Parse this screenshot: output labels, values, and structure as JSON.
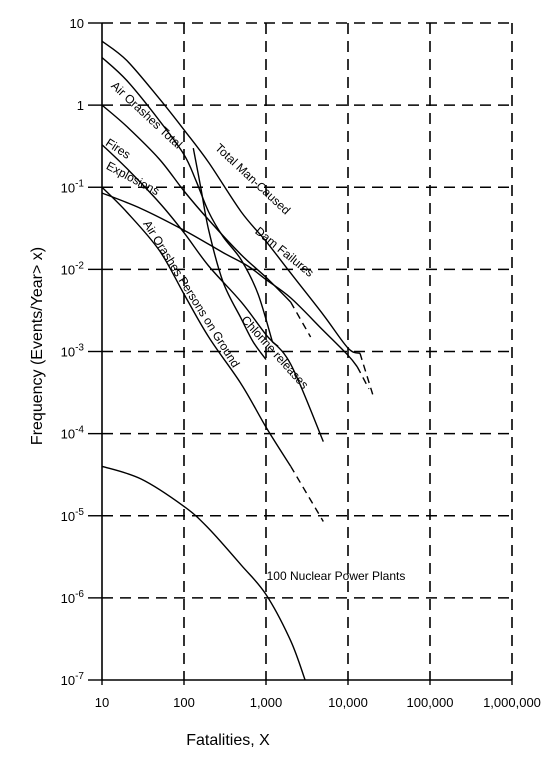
{
  "chart_data": {
    "type": "line",
    "title": "",
    "xlabel": "Fatalities, X",
    "ylabel": "Frequency (Events/Year> x)",
    "x_scale": "log",
    "y_scale": "log",
    "xlim": [
      10,
      1000000
    ],
    "ylim": [
      1e-07,
      10
    ],
    "grid": true,
    "grid_style": "dashed",
    "x_ticks": [
      "10",
      "100",
      "1,000",
      "10,000",
      "100,000",
      "1,000,000"
    ],
    "y_ticks": [
      {
        "base": "10",
        "exp": "-7"
      },
      {
        "base": "10",
        "exp": "-6"
      },
      {
        "base": "10",
        "exp": "-5"
      },
      {
        "base": "10",
        "exp": "-4"
      },
      {
        "base": "10",
        "exp": "-3"
      },
      {
        "base": "10",
        "exp": "-2"
      },
      {
        "base": "10",
        "exp": "-1"
      },
      {
        "base": "1",
        "exp": ""
      },
      {
        "base": "10",
        "exp": ""
      }
    ],
    "series": [
      {
        "name": "Total Man-Caused",
        "x": [
          10,
          20,
          50,
          100,
          200,
          500,
          1000,
          2000,
          5000,
          10000,
          14000
        ],
        "y": [
          6,
          3.5,
          1.2,
          0.5,
          0.2,
          0.05,
          0.022,
          0.009,
          0.0028,
          0.0011,
          0.00095
        ],
        "dashed_x": [
          14000,
          20000
        ],
        "dashed_y": [
          0.00095,
          0.0003
        ]
      },
      {
        "name": "Air Crashes Total",
        "x": [
          10,
          20,
          50,
          100,
          140,
          200,
          300,
          500,
          800,
          1200
        ],
        "y": [
          3.8,
          2,
          0.65,
          0.25,
          0.12,
          0.05,
          0.025,
          0.013,
          0.005,
          0.0013
        ],
        "dashed_x": [
          1200,
          1500
        ],
        "dashed_y": [
          0.0013,
          0.0011
        ]
      },
      {
        "name": "Dam Failures",
        "x": [
          10,
          30,
          100,
          300,
          600,
          1000,
          2000,
          5000,
          10000,
          13000
        ],
        "y": [
          0.085,
          0.055,
          0.03,
          0.016,
          0.011,
          0.0075,
          0.0045,
          0.0018,
          0.0009,
          0.00065
        ],
        "dashed_x": [
          13000,
          18000
        ],
        "dashed_y": [
          0.00065,
          0.00035
        ]
      },
      {
        "name": "Fires",
        "x": [
          10,
          20,
          50,
          100,
          200,
          500,
          1000,
          2000
        ],
        "y": [
          1.0,
          0.55,
          0.22,
          0.09,
          0.04,
          0.015,
          0.008,
          0.004
        ],
        "dashed_x": [
          2000,
          3500
        ],
        "dashed_y": [
          0.004,
          0.0015
        ]
      },
      {
        "name": "Explosions",
        "x": [
          10,
          20,
          50,
          100,
          200,
          500,
          1000,
          2000,
          5000
        ],
        "y": [
          0.33,
          0.17,
          0.065,
          0.028,
          0.011,
          0.004,
          0.0016,
          0.0007,
          8e-05
        ]
      },
      {
        "name": "Air Crashes Persons on Ground",
        "x": [
          10,
          20,
          50,
          100,
          200,
          500,
          1000,
          2000
        ],
        "y": [
          0.1,
          0.05,
          0.017,
          0.005,
          0.0015,
          0.0004,
          0.00012,
          4e-05
        ],
        "dashed_x": [
          2000,
          5000
        ],
        "dashed_y": [
          4e-05,
          8.5e-06
        ]
      },
      {
        "name": "Chlorine releases",
        "x": [
          130,
          160,
          200,
          300,
          500,
          700,
          1000
        ],
        "y": [
          0.3,
          0.1,
          0.03,
          0.007,
          0.0025,
          0.0013,
          0.0008
        ]
      },
      {
        "name": "100 Nuclear Power Plants",
        "x": [
          10,
          30,
          100,
          200,
          500,
          1000,
          2000,
          3000
        ],
        "y": [
          4e-05,
          2.8e-05,
          1.3e-05,
          7e-06,
          2.5e-06,
          1.1e-06,
          3e-07,
          1e-07
        ]
      }
    ],
    "curve_labels": [
      "Total Man-Caused",
      "Air Orashes Total",
      "Fires",
      "Explosions",
      "Air Orashes Persons on Ground",
      "Chlonne releases",
      "Dam Failures",
      "100 Nuclear Power Plants"
    ]
  }
}
